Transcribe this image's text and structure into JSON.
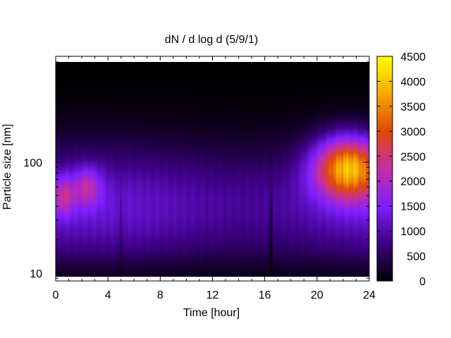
{
  "chart_data": {
    "type": "heatmap",
    "title": "dN / d log d (5/9/1)",
    "xlabel": "Time [hour]",
    "ylabel": "Particle size [nm]",
    "xlim": [
      0,
      24
    ],
    "x_ticks": [
      0,
      4,
      8,
      12,
      16,
      20,
      24
    ],
    "x_tick_labels": [
      "0",
      "4",
      "8",
      "12",
      "16",
      "20",
      "24"
    ],
    "ylim": [
      8.5,
      900
    ],
    "yscale": "log",
    "y_ticks": [
      10,
      100
    ],
    "y_tick_labels": [
      "10",
      "100"
    ],
    "colorbar": {
      "range": [
        0,
        4500
      ],
      "ticks": [
        0,
        500,
        1000,
        1500,
        2000,
        2500,
        3000,
        3500,
        4000,
        4500
      ],
      "tick_labels": [
        "0",
        "500",
        "1000",
        "1500",
        "2000",
        "2500",
        "3000",
        "3500",
        "4000",
        "4500"
      ],
      "colormap": [
        "#000000",
        "#3c0082",
        "#7e1fff",
        "#c42fa6",
        "#e1480b",
        "#f8a800",
        "#ffff00"
      ]
    },
    "field": {
      "background_peak_nm": 40,
      "background_peak_value": 1250,
      "modes": [
        {
          "t": 0.6,
          "d_nm": 50,
          "value": 2300
        },
        {
          "t": 2.4,
          "d_nm": 60,
          "value": 2250
        },
        {
          "t": 22.4,
          "d_nm": 90,
          "value": 4300
        }
      ],
      "dips": [
        {
          "t": 5.0,
          "value": -400
        },
        {
          "t": 16.5,
          "value": -500
        }
      ]
    }
  }
}
